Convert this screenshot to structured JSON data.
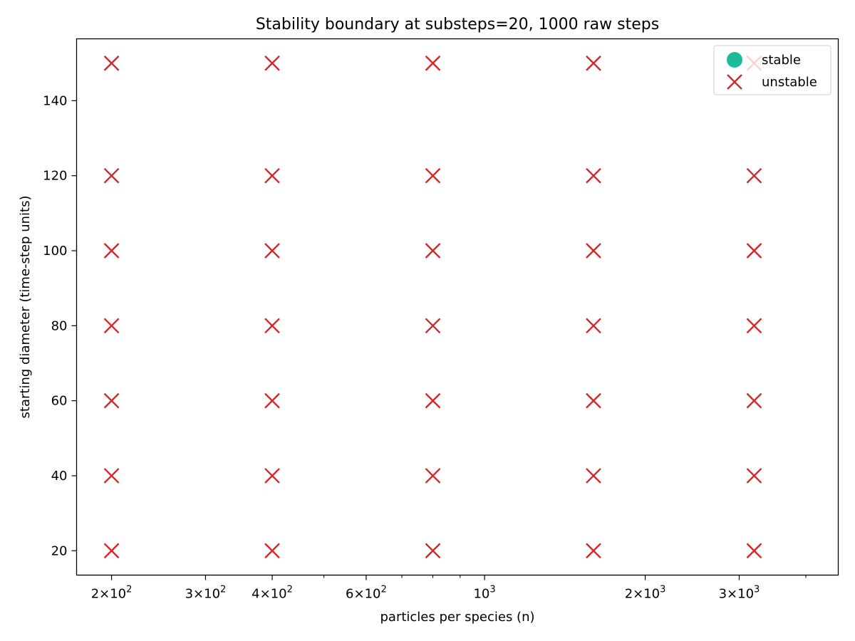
{
  "colors": {
    "stable": "#1abc9c",
    "unstable": "#d62728"
  },
  "chart_data": {
    "type": "scatter",
    "title": "Stability boundary at substeps=20, 1000 raw steps",
    "xlabel": "particles per species (n)",
    "ylabel": "starting diameter (time-step units)",
    "xscale": "log",
    "xlim": [
      172,
      4600
    ],
    "ylim": [
      13.5,
      156.5
    ],
    "grid": false,
    "legend_position": "top-right",
    "x_ticks_major": [
      {
        "value": 200,
        "label": "2×10",
        "exp": "2"
      },
      {
        "value": 300,
        "label": "3×10",
        "exp": "2"
      },
      {
        "value": 400,
        "label": "4×10",
        "exp": "2"
      },
      {
        "value": 600,
        "label": "6×10",
        "exp": "2"
      },
      {
        "value": 1000,
        "label": "10",
        "exp": "3"
      },
      {
        "value": 2000,
        "label": "2×10",
        "exp": "3"
      },
      {
        "value": 3000,
        "label": "3×10",
        "exp": "3"
      }
    ],
    "x_ticks_minor": [
      500,
      700,
      800,
      900,
      4000
    ],
    "y_ticks": [
      {
        "value": 20,
        "label": "20"
      },
      {
        "value": 40,
        "label": "40"
      },
      {
        "value": 60,
        "label": "60"
      },
      {
        "value": 80,
        "label": "80"
      },
      {
        "value": 100,
        "label": "100"
      },
      {
        "value": 120,
        "label": "120"
      },
      {
        "value": 140,
        "label": "140"
      }
    ],
    "series": [
      {
        "name": "stable",
        "marker": "circle",
        "points": []
      },
      {
        "name": "unstable",
        "marker": "x",
        "points": [
          [
            200,
            20
          ],
          [
            200,
            40
          ],
          [
            200,
            60
          ],
          [
            200,
            80
          ],
          [
            200,
            100
          ],
          [
            200,
            120
          ],
          [
            200,
            150
          ],
          [
            400,
            20
          ],
          [
            400,
            40
          ],
          [
            400,
            60
          ],
          [
            400,
            80
          ],
          [
            400,
            100
          ],
          [
            400,
            120
          ],
          [
            400,
            150
          ],
          [
            800,
            20
          ],
          [
            800,
            40
          ],
          [
            800,
            60
          ],
          [
            800,
            80
          ],
          [
            800,
            100
          ],
          [
            800,
            120
          ],
          [
            800,
            150
          ],
          [
            1600,
            20
          ],
          [
            1600,
            40
          ],
          [
            1600,
            60
          ],
          [
            1600,
            80
          ],
          [
            1600,
            100
          ],
          [
            1600,
            120
          ],
          [
            1600,
            150
          ],
          [
            3200,
            20
          ],
          [
            3200,
            40
          ],
          [
            3200,
            60
          ],
          [
            3200,
            80
          ],
          [
            3200,
            100
          ],
          [
            3200,
            120
          ],
          [
            3200,
            150
          ]
        ]
      }
    ]
  }
}
